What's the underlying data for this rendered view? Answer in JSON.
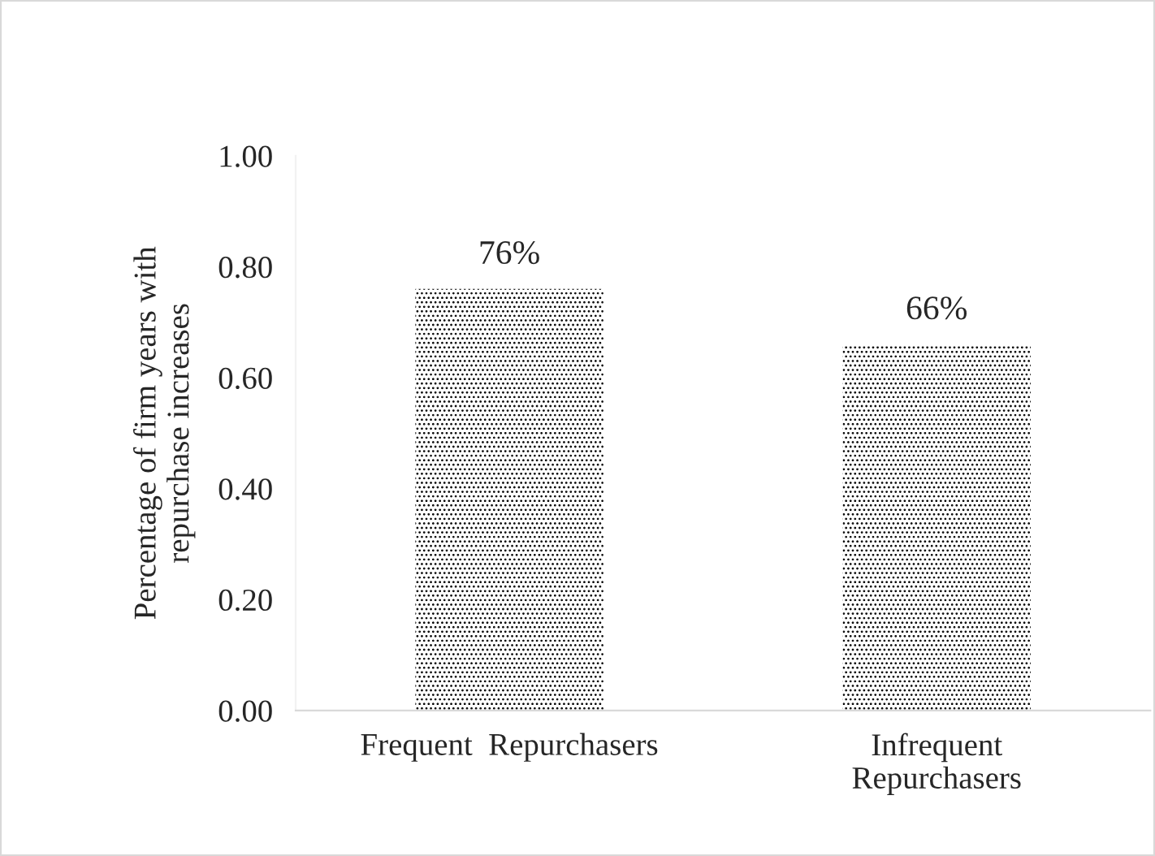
{
  "chart_data": {
    "type": "bar",
    "ylabel": "Percentage of firm years with\nrepurchase increases",
    "categories": [
      "Frequent  Repurchasers",
      "Infrequent\nRepurchasers"
    ],
    "series": [
      {
        "color": "#000000",
        "values": [
          0.76,
          0.66
        ]
      }
    ],
    "value_labels": [
      "76%",
      "66%"
    ],
    "ylim": [
      0,
      1
    ],
    "yticks": [
      {
        "value": 0,
        "label": "0.00"
      },
      {
        "value": 0.2,
        "label": "0.20"
      },
      {
        "value": 0.4,
        "label": "0.40"
      },
      {
        "value": 0.6,
        "label": "0.60"
      },
      {
        "value": 0.8,
        "label": "0.80"
      },
      {
        "value": 1,
        "label": "1.00"
      }
    ],
    "grid": false,
    "legend": false
  }
}
